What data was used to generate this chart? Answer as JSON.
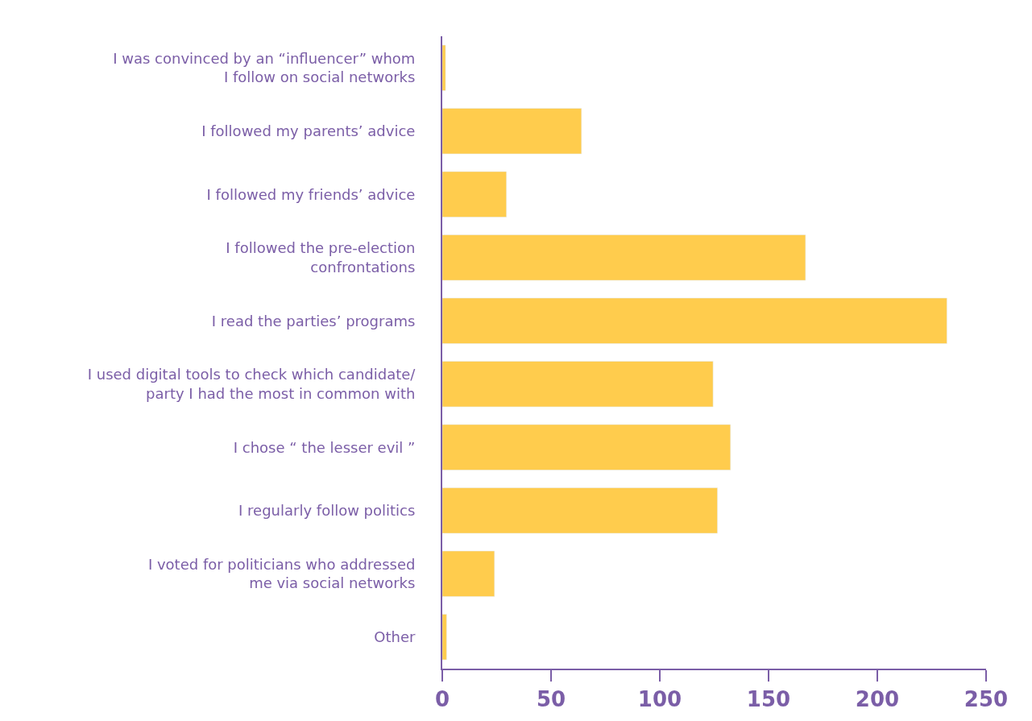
{
  "chart_data": {
    "type": "bar",
    "orientation": "horizontal",
    "categories": [
      "I was convinced by an “influencer” whom\nI follow on social networks",
      "I followed my parents’ advice",
      "I followed my friends’ advice",
      "I followed the pre-election\nconfrontations",
      "I read the parties’ programs",
      "I used digital tools to check which candidate/\nparty I had the most in common with",
      "I chose “ the lesser evil ”",
      "I regularly follow politics",
      "I voted for politicians who addressed\nme via social networks",
      "Other"
    ],
    "values": [
      1.5,
      64,
      29.5,
      167,
      232,
      124.5,
      132.5,
      126.5,
      24,
      2
    ],
    "color": "#ffcc4d",
    "xlim": [
      0,
      250
    ],
    "xticks": [
      0,
      50,
      100,
      150,
      200,
      250
    ]
  }
}
